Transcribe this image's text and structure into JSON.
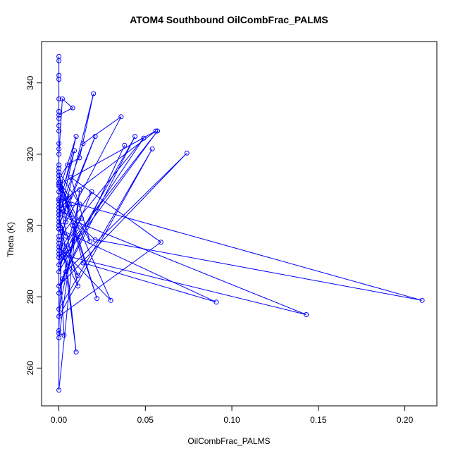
{
  "chart_data": {
    "type": "line",
    "title": "ATOM4 Southbound OilCombFrac_PALMS",
    "xlabel": "OilCombFrac_PALMS",
    "ylabel": "Theta (K)",
    "xlim": [
      -0.01,
      0.2185
    ],
    "ylim": [
      249.4,
      351.6
    ],
    "x_ticks": [
      0.0,
      0.05,
      0.1,
      0.15,
      0.2
    ],
    "x_tick_labels": [
      "0.00",
      "0.05",
      "0.10",
      "0.15",
      "0.20"
    ],
    "y_ticks": [
      260,
      280,
      300,
      320,
      340
    ],
    "y_tick_labels": [
      "260",
      "280",
      "300",
      "320",
      "340"
    ],
    "grid": false,
    "legend": "none",
    "color": "#0000ff",
    "series": [
      {
        "x": [
          0.0,
          0.0,
          0.0,
          0.0,
          0.0,
          0.0,
          0.0,
          0.0,
          0.0,
          0.0,
          0.0,
          0.0,
          0.002,
          0.008,
          0.0,
          0.0,
          0.0,
          0.0,
          0.005,
          0.012,
          0.02,
          0.003,
          0.0,
          0.0,
          0.01,
          0.0,
          0.0,
          0.014,
          0.036,
          0.004,
          0.0,
          0.0,
          0.0,
          0.056,
          0.0,
          0.009,
          0.0,
          0.004,
          0.0,
          0.021,
          0.006,
          0.0,
          0.013,
          0.0,
          0.057,
          0.0,
          0.049,
          0.008,
          0.0,
          0.044,
          0.002,
          0.038,
          0.0,
          0.074,
          0.004,
          0.0,
          0.01,
          0.0,
          0.054,
          0.0,
          0.059,
          0.007,
          0.018,
          0.0,
          0.0,
          0.003,
          0.019,
          0.0,
          0.0,
          0.0,
          0.012,
          0.0,
          0.021,
          0.21,
          0.0,
          0.011,
          0.0,
          0.03,
          0.0,
          0.022,
          0.0,
          0.014,
          0.091,
          0.0,
          0.011,
          0.0,
          0.143,
          0.0,
          0.01,
          0.002,
          0.0,
          0.0,
          0.003,
          0.0,
          0.0,
          0.012,
          0.0,
          0.0,
          0.007,
          0.001,
          0.0,
          0.0,
          0.0,
          0.006,
          0.001,
          0.0,
          0.0
        ],
        "y": [
          347.4,
          346.2,
          342.1,
          341.0,
          335.5,
          332.0,
          330.0,
          328.0,
          326.5,
          323.0,
          321.5,
          320.0,
          335.5,
          333.0,
          331.0,
          317.0,
          316.0,
          313.0,
          317.0,
          319.0,
          337.0,
          304.0,
          311.0,
          309.5,
          325.0,
          305.0,
          303.0,
          323.0,
          330.5,
          301.0,
          315.0,
          314.0,
          311.5,
          326.5,
          306.0,
          321.0,
          302.0,
          297.0,
          300.0,
          325.0,
          306.0,
          293.0,
          302.0,
          291.0,
          326.5,
          289.0,
          324.5,
          300.0,
          287.0,
          325.0,
          285.0,
          322.5,
          283.0,
          320.3,
          287.0,
          281.0,
          299.0,
          276.5,
          321.5,
          274.5,
          295.3,
          313.5,
          295.5,
          312.0,
          303.0,
          291.0,
          309.5,
          296.0,
          307.0,
          315.0,
          306.0,
          305.0,
          296.0,
          279.0,
          307.5,
          283.0,
          294.0,
          279.0,
          312.0,
          279.5,
          314.0,
          289.5,
          278.5,
          299.0,
          286.0,
          292.0,
          275.0,
          303.0,
          264.5,
          300.0,
          270.5,
          295.0,
          269.2,
          269.7,
          268.5,
          310.0,
          253.8,
          304.0,
          303.0,
          312.0,
          301.0,
          300.0,
          304.0,
          308.0,
          312.0,
          299.0,
          297.0
        ]
      }
    ]
  }
}
